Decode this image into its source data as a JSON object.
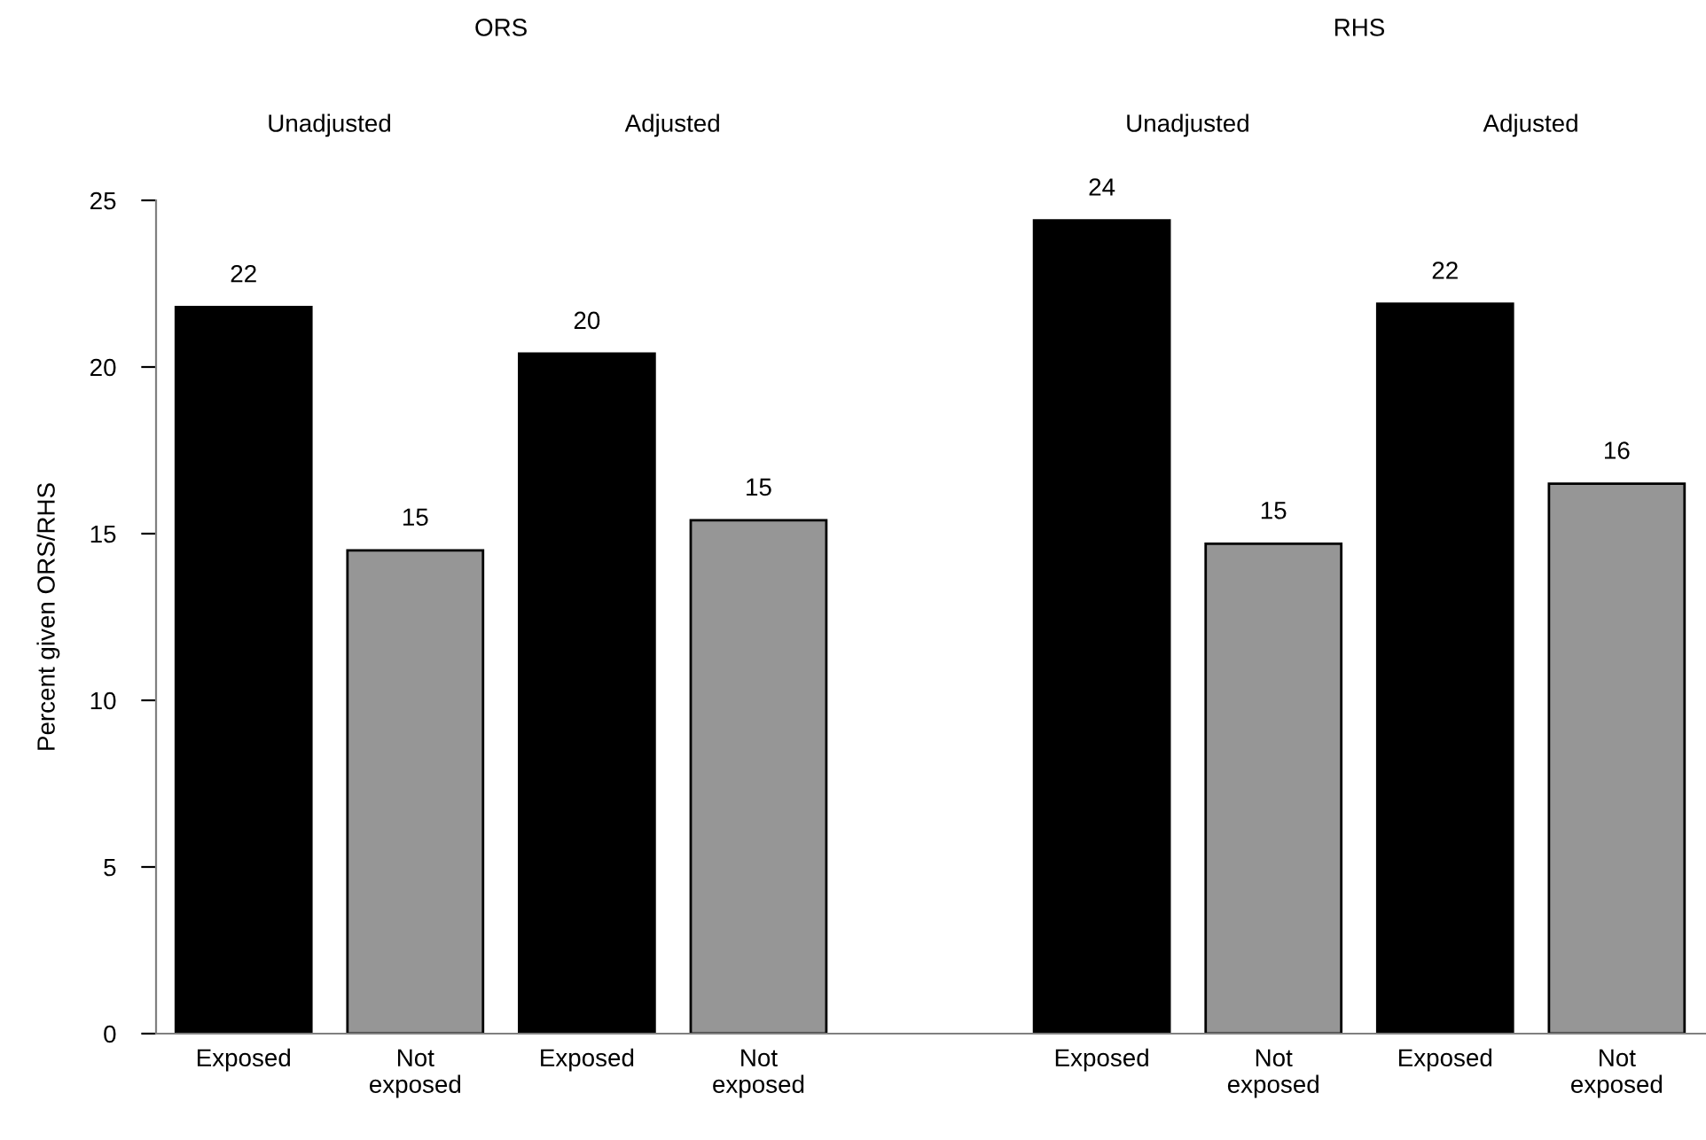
{
  "chart_data": {
    "type": "bar",
    "ylabel": "Percent given ORS/RHS",
    "categories": [
      "Exposed",
      "Not\nexposed",
      "Exposed",
      "Not\nexposed",
      null,
      "Exposed",
      "Not\nexposed",
      "Exposed",
      "Not\nexposed"
    ],
    "values": [
      21.8,
      14.5,
      20.4,
      15.4,
      null,
      24.4,
      14.7,
      21.9,
      16.5
    ],
    "value_labels": [
      "22",
      "15",
      "20",
      "15",
      null,
      "24",
      "15",
      "22",
      "16"
    ],
    "colors": [
      "#000000",
      "#969696",
      "#000000",
      "#969696",
      "#ffffff",
      "#000000",
      "#969696",
      "#000000",
      "#969696"
    ],
    "ylim": [
      0,
      25
    ],
    "yticks": [
      0,
      5,
      10,
      15,
      20,
      25
    ],
    "annotations": [
      "ORS",
      "RHS",
      "Unadjusted",
      "Adjusted",
      "Unadjusted",
      "Adjusted"
    ],
    "grid": false,
    "legend": false
  }
}
